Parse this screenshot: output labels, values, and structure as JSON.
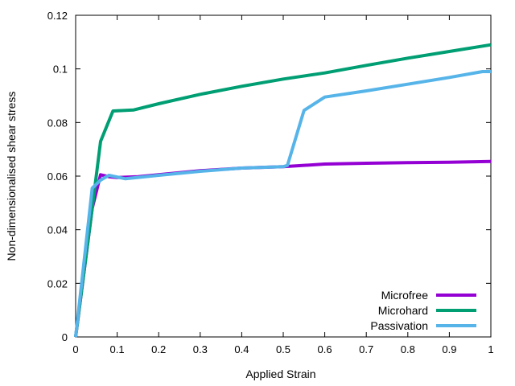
{
  "chart_data": {
    "type": "line",
    "title": "",
    "xlabel": "Applied Strain",
    "ylabel": "Non-dimensionalised shear stress",
    "xlim": [
      0,
      1
    ],
    "ylim": [
      0,
      0.12
    ],
    "xticks": [
      0,
      0.1,
      0.2,
      0.3,
      0.4,
      0.5,
      0.6,
      0.7,
      0.8,
      0.9,
      1
    ],
    "xtick_labels": [
      "0",
      "0.1",
      "0.2",
      "0.3",
      "0.4",
      "0.5",
      "0.6",
      "0.7",
      "0.8",
      "0.9",
      "1"
    ],
    "yticks": [
      0,
      0.02,
      0.04,
      0.06,
      0.08,
      0.1,
      0.12
    ],
    "ytick_labels": [
      "0",
      "0.02",
      "0.04",
      "0.06",
      "0.08",
      "0.1",
      "0.12"
    ],
    "grid": false,
    "legend_position": "bottom-right",
    "series": [
      {
        "name": "Microfree",
        "color": "#9400d3",
        "x": [
          0,
          0.04,
          0.06,
          0.08,
          0.1,
          0.15,
          0.2,
          0.3,
          0.4,
          0.5,
          0.6,
          0.7,
          0.8,
          0.9,
          1.0
        ],
        "y": [
          0,
          0.048,
          0.0605,
          0.0598,
          0.0595,
          0.0598,
          0.0605,
          0.062,
          0.063,
          0.0635,
          0.0645,
          0.0648,
          0.065,
          0.0652,
          0.0655
        ]
      },
      {
        "name": "Microhard",
        "color": "#009e73",
        "x": [
          0,
          0.04,
          0.06,
          0.09,
          0.14,
          0.2,
          0.3,
          0.4,
          0.5,
          0.6,
          0.7,
          0.8,
          0.9,
          1.0
        ],
        "y": [
          0,
          0.048,
          0.073,
          0.0843,
          0.0847,
          0.087,
          0.0905,
          0.0935,
          0.0962,
          0.0985,
          0.1013,
          0.104,
          0.1065,
          0.109
        ]
      },
      {
        "name": "Passivation",
        "color": "#56b4e9",
        "x": [
          0,
          0.04,
          0.06,
          0.08,
          0.12,
          0.2,
          0.3,
          0.4,
          0.5,
          0.51,
          0.55,
          0.6,
          0.7,
          0.8,
          0.9,
          0.98,
          1.0
        ],
        "y": [
          0,
          0.0555,
          0.0585,
          0.0603,
          0.059,
          0.0603,
          0.0618,
          0.063,
          0.0635,
          0.064,
          0.0845,
          0.0895,
          0.0918,
          0.0943,
          0.0968,
          0.099,
          0.099
        ]
      }
    ]
  }
}
